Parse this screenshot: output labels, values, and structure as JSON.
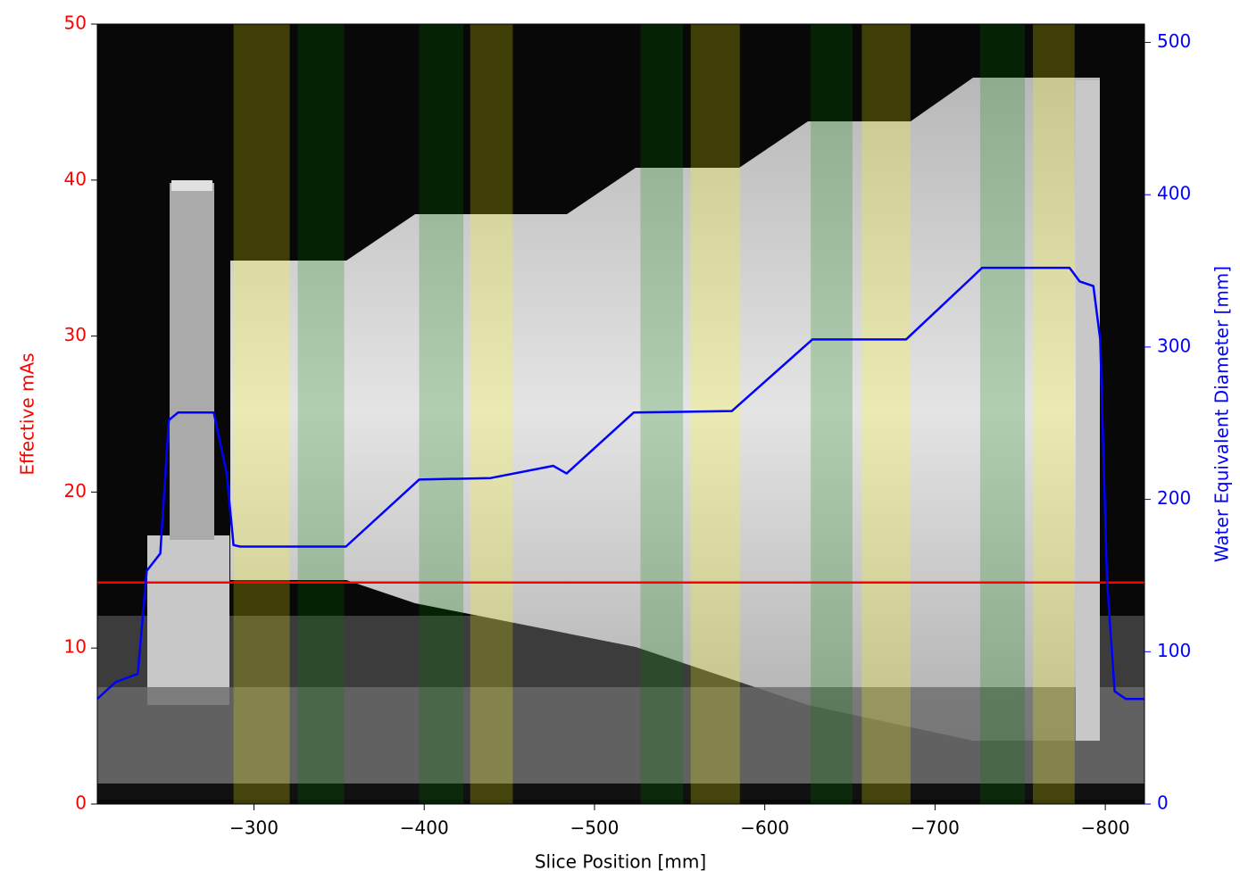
{
  "chart_data": {
    "type": "line",
    "xlabel": "Slice Position [mm]",
    "ylabel": "Effective mAs",
    "y2label": "Water Equivalent Diameter [mm]",
    "ylabel_color": "#ff0000",
    "y2label_color": "#0000ff",
    "xlim": [
      -208,
      -823
    ],
    "ylim": [
      0,
      50
    ],
    "y2lim": [
      0,
      512
    ],
    "xticks": [
      {
        "value": -300,
        "label": "−300"
      },
      {
        "value": -400,
        "label": "−400"
      },
      {
        "value": -500,
        "label": "−500"
      },
      {
        "value": -600,
        "label": "−600"
      },
      {
        "value": -700,
        "label": "−700"
      },
      {
        "value": -800,
        "label": "−800"
      }
    ],
    "yticks": [
      0,
      10,
      20,
      30,
      40,
      50
    ],
    "y2ticks": [
      0,
      100,
      200,
      300,
      400,
      500
    ],
    "hlines": [
      {
        "y": 14.2,
        "color": "#ff0000"
      }
    ],
    "series": [
      {
        "color": "#0000ff",
        "axis": "y2",
        "x": [
          -208,
          -218.7,
          -231.8,
          -237,
          -245,
          -250,
          -255.4,
          -276.4,
          -280.6,
          -284,
          -288,
          -292,
          -334,
          -354,
          -397,
          -439,
          -475.8,
          -483.6,
          -523,
          -580.7,
          -628,
          -683,
          -722,
          -727.6,
          -779,
          -785,
          -793,
          -797,
          -801,
          -805.5,
          -812,
          -823
        ],
        "values": [
          69,
          80,
          85.5,
          153,
          164.5,
          252,
          257,
          257,
          235,
          217,
          170,
          169,
          169,
          169,
          213,
          214,
          222,
          217,
          257,
          258,
          305,
          305,
          346,
          352,
          352,
          343,
          340,
          305,
          147,
          74,
          69,
          69
        ]
      }
    ],
    "spans": [
      {
        "x": [
          -288,
          -321
        ],
        "color": "#ffff00"
      },
      {
        "x": [
          -427,
          -452
        ],
        "color": "#ffff00"
      },
      {
        "x": [
          -556.5,
          -585.4
        ],
        "color": "#ffff00"
      },
      {
        "x": [
          -657,
          -685.6
        ],
        "color": "#ffff00"
      },
      {
        "x": [
          -757.5,
          -782
        ],
        "color": "#ffff00"
      },
      {
        "x": [
          -325.7,
          -353
        ],
        "color": "#008000"
      },
      {
        "x": [
          -397,
          -423
        ],
        "color": "#008000"
      },
      {
        "x": [
          -527,
          -552
        ],
        "color": "#008000"
      },
      {
        "x": [
          -627,
          -651.5
        ],
        "color": "#008000"
      },
      {
        "x": [
          -726.5,
          -752.8
        ],
        "color": "#008000"
      }
    ],
    "span_alpha": 0.22
  }
}
